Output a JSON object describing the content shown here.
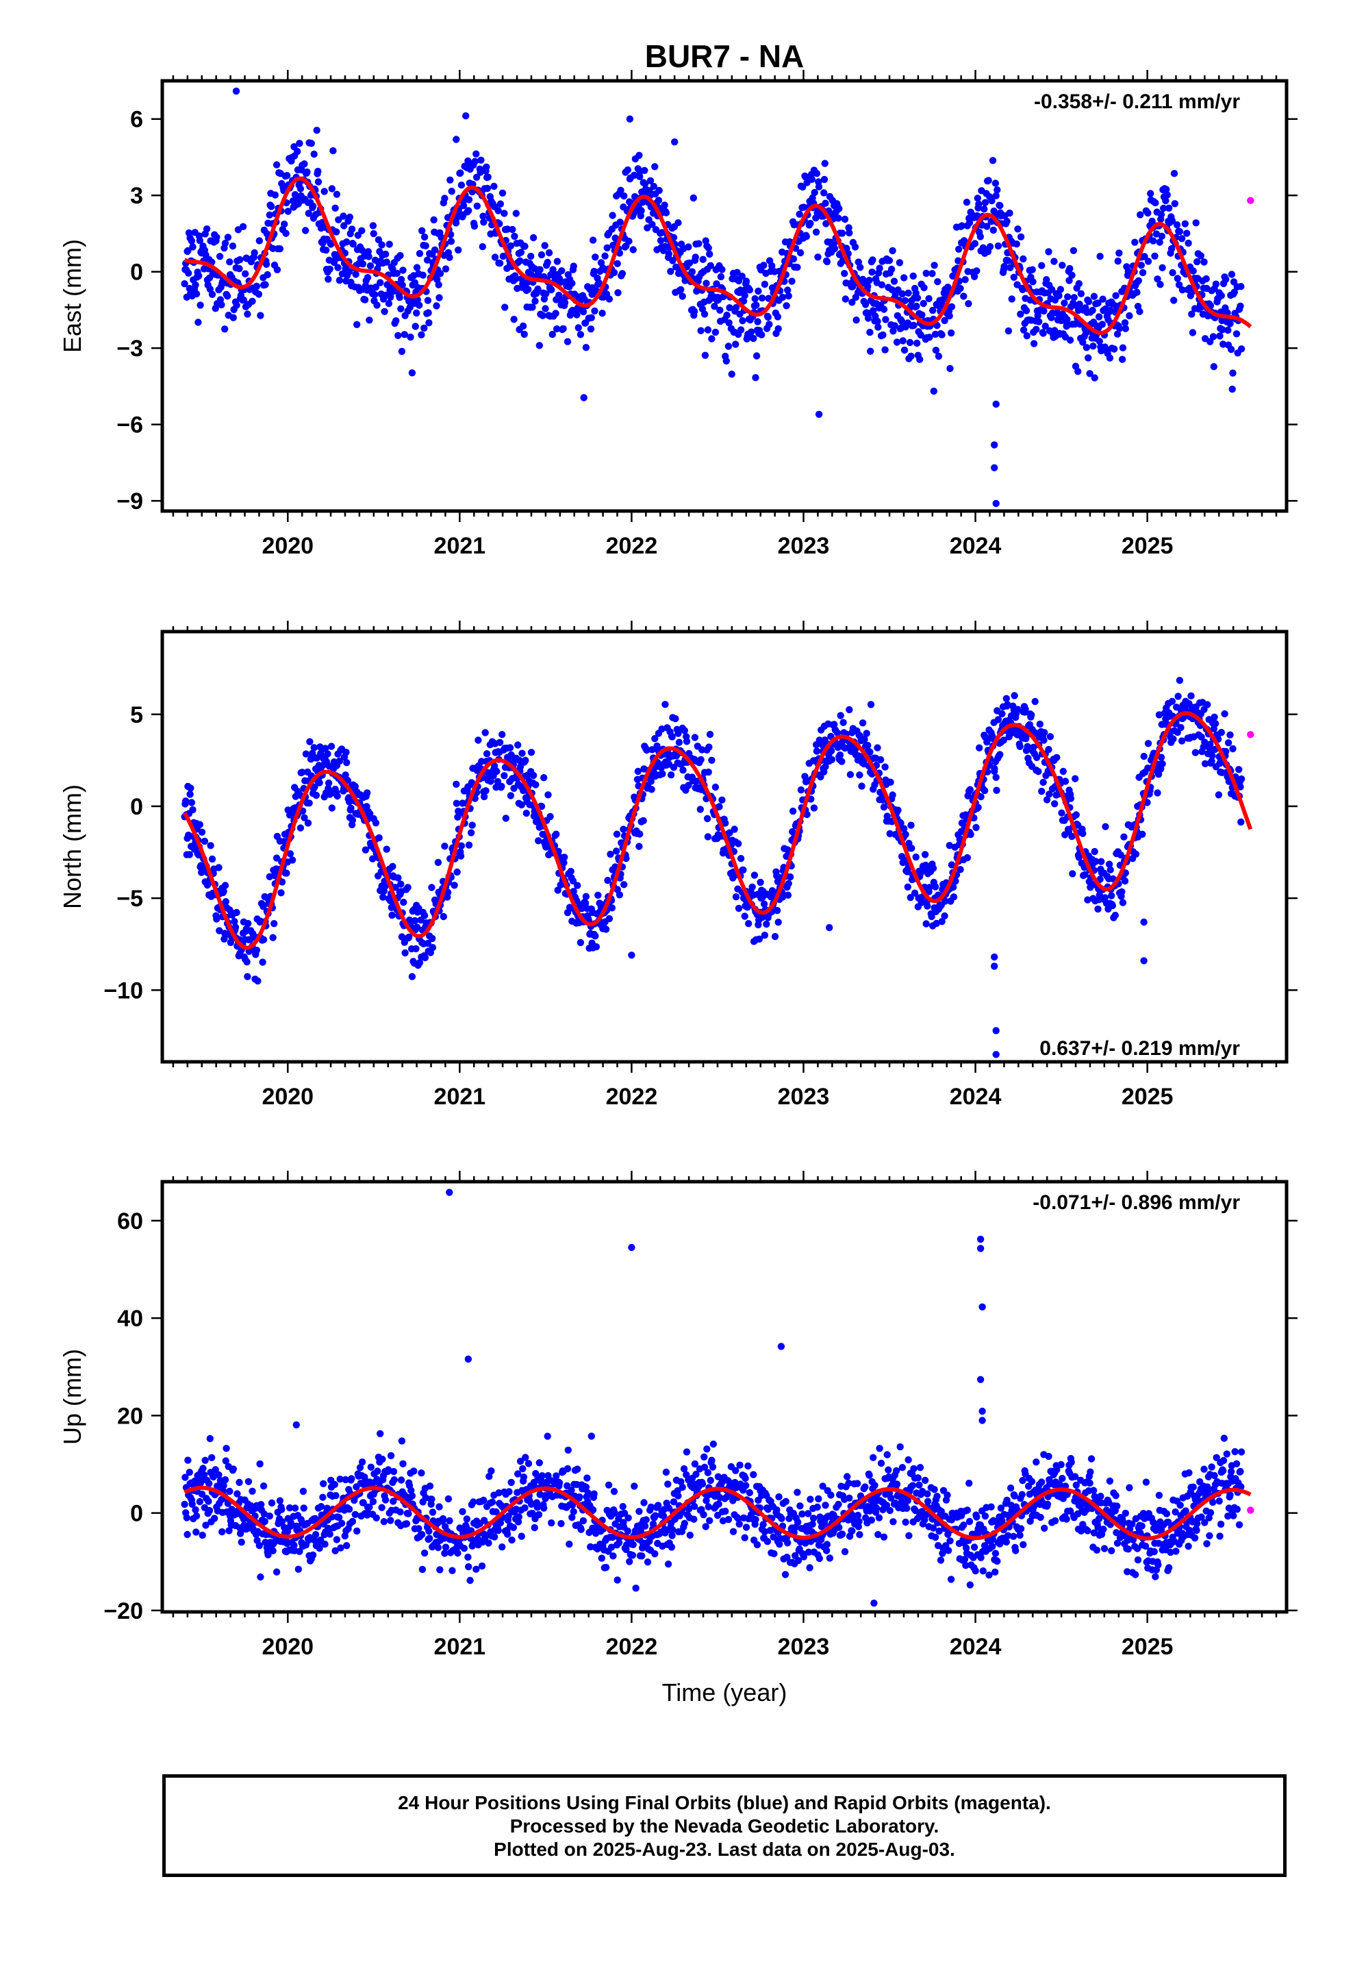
{
  "title": "BUR7 - NA",
  "colors": {
    "final_orbits": "#0000ff",
    "rapid_orbits": "#ff00ff",
    "model": "#ff0000",
    "frame": "#000000"
  },
  "footer": {
    "line1": "24 Hour Positions Using Final Orbits (blue) and Rapid Orbits (magenta).",
    "line2": "Processed by the Nevada Geodetic Laboratory.",
    "line3": "Plotted on 2025-Aug-23. Last data on 2025-Aug-03."
  },
  "chart_data": [
    {
      "type": "scatter",
      "ylabel": "East (mm)",
      "xlabel": "",
      "rate_label": "-0.358+/- 0.211 mm/yr",
      "rate_position": "top-right",
      "xlim": [
        2019.27,
        2025.81
      ],
      "ylim": [
        -9.4,
        7.5
      ],
      "x_ticks": [
        2020,
        2021,
        2022,
        2023,
        2024,
        2025
      ],
      "y_ticks": [
        -9,
        -6,
        -3,
        0,
        3,
        6
      ],
      "y_tick_labels": [
        "−9",
        "−6",
        "−3",
        "0",
        "3",
        "6"
      ],
      "model": {
        "name": "",
        "offset": 0.36,
        "rate": -0.358,
        "start": 2019.4,
        "end": 2025.6,
        "annual": [
          1.15,
          1.5
        ],
        "semiannual": [
          0.5,
          0.6
        ]
      },
      "noise_sd": 0.9,
      "outliers": [
        [
          2019.7,
          7.1
        ],
        [
          2020.98,
          5.2
        ],
        [
          2021.99,
          6.0
        ],
        [
          2022.25,
          5.1
        ],
        [
          2022.36,
          2.9
        ],
        [
          2023.09,
          -5.6
        ],
        [
          2024.11,
          -6.8
        ],
        [
          2024.11,
          -7.7
        ],
        [
          2024.12,
          -9.1
        ],
        [
          2024.12,
          -5.2
        ]
      ],
      "rapid": [
        [
          2025.6,
          2.8
        ]
      ]
    },
    {
      "type": "scatter",
      "ylabel": "North (mm)",
      "xlabel": "",
      "rate_label": "0.637+/- 0.219 mm/yr",
      "rate_position": "bottom-right",
      "xlim": [
        2019.27,
        2025.81
      ],
      "ylim": [
        -13.9,
        9.5
      ],
      "x_ticks": [
        2020,
        2021,
        2022,
        2023,
        2024,
        2025
      ],
      "y_ticks": [
        -10,
        -5,
        0,
        5
      ],
      "y_tick_labels": [
        "−10",
        "−5",
        "0",
        "5"
      ],
      "model": {
        "name": "",
        "offset": -1.25,
        "rate": 0.637,
        "start": 2019.4,
        "end": 2025.6,
        "annual": [
          4.6,
          0.0
        ],
        "semiannual": [
          0.3,
          0.4
        ]
      },
      "noise_sd": 0.9,
      "outliers": [
        [
          2020.98,
          1.2
        ],
        [
          2022.0,
          -8.1
        ],
        [
          2023.15,
          -6.6
        ],
        [
          2024.11,
          -8.2
        ],
        [
          2024.11,
          -8.7
        ],
        [
          2024.12,
          -12.2
        ],
        [
          2024.12,
          -13.5
        ],
        [
          2024.11,
          1.9
        ],
        [
          2024.98,
          -6.3
        ],
        [
          2024.98,
          -8.4
        ]
      ],
      "rapid": [
        [
          2025.6,
          3.9
        ]
      ]
    },
    {
      "type": "scatter",
      "ylabel": "Up (mm)",
      "xlabel": "Time (year)",
      "rate_label": "-0.071+/- 0.896 mm/yr",
      "rate_position": "top-right",
      "xlim": [
        2019.27,
        2025.81
      ],
      "ylim": [
        -20.3,
        68
      ],
      "x_ticks": [
        2020,
        2021,
        2022,
        2023,
        2024,
        2025
      ],
      "y_ticks": [
        -20,
        0,
        20,
        40,
        60
      ],
      "y_tick_labels": [
        "−20",
        "0",
        "20",
        "40",
        "60"
      ],
      "model": {
        "name": "",
        "offset": 0.0,
        "rate": -0.071,
        "start": 2019.4,
        "end": 2025.6,
        "annual": [
          0.0,
          -5.0
        ],
        "semiannual": [
          0.0,
          0.0
        ]
      },
      "noise_sd": 3.8,
      "outliers": [
        [
          2020.94,
          65.8
        ],
        [
          2021.05,
          31.6
        ],
        [
          2022.0,
          54.5
        ],
        [
          2022.87,
          34.2
        ],
        [
          2024.03,
          56.2
        ],
        [
          2024.03,
          54.3
        ],
        [
          2024.04,
          42.3
        ],
        [
          2024.03,
          27.4
        ],
        [
          2024.04,
          20.9
        ],
        [
          2024.04,
          19.0
        ],
        [
          2020.05,
          18.1
        ],
        [
          2023.41,
          -18.5
        ]
      ],
      "rapid": [
        [
          2025.6,
          0.6
        ]
      ]
    }
  ]
}
